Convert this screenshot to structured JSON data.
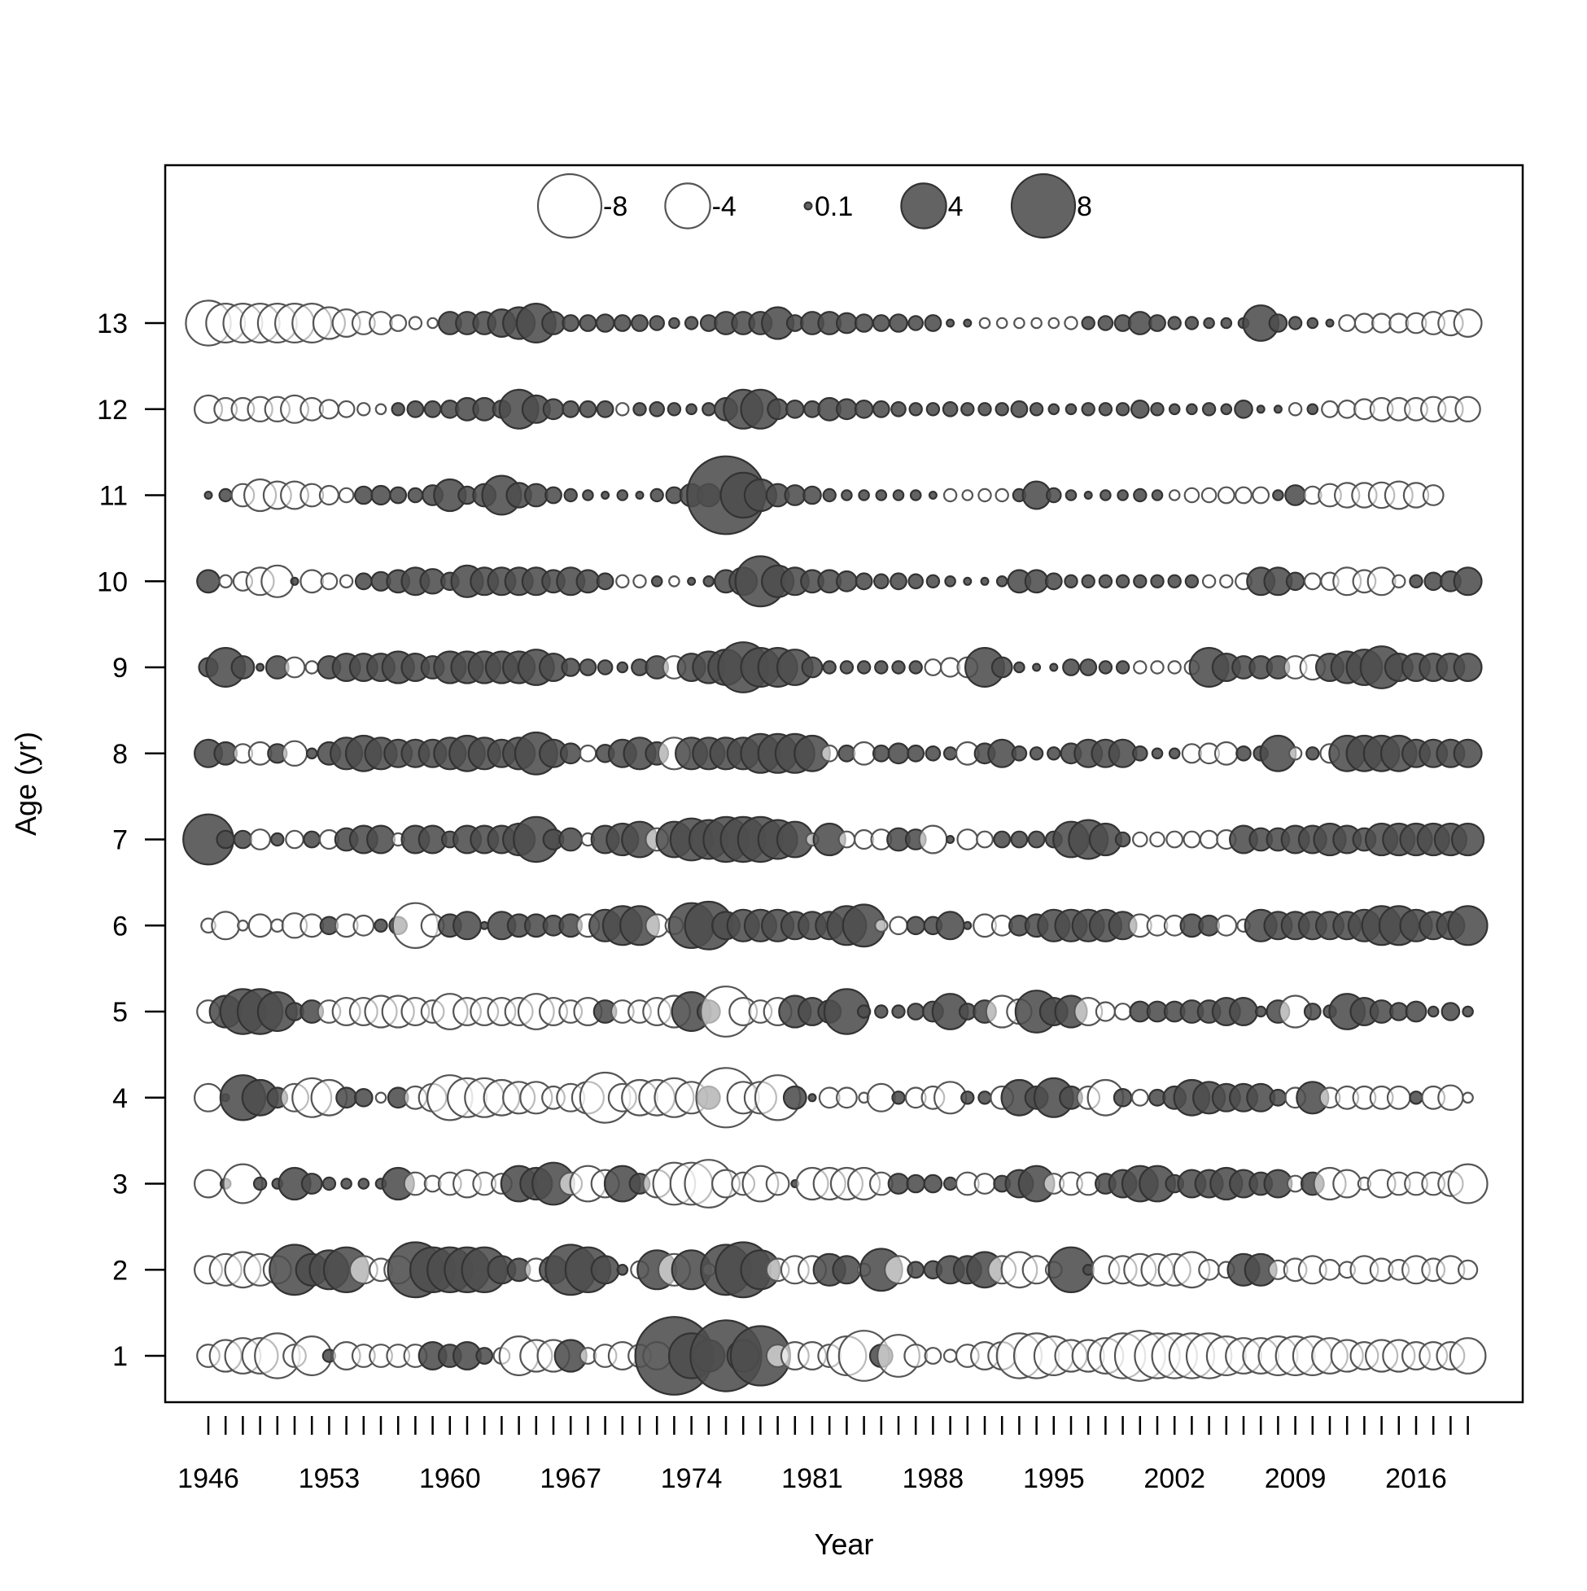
{
  "chart_data": {
    "type": "scatter",
    "subtype": "bubble",
    "xlabel": "Year",
    "ylabel": "Age (yr)",
    "x_ticks": [
      1946,
      1953,
      1960,
      1967,
      1974,
      1981,
      1988,
      1995,
      2002,
      2009,
      2016
    ],
    "x_minor_tick_step": 1,
    "x_range": [
      1946,
      2019
    ],
    "y_ticks": [
      1,
      2,
      3,
      4,
      5,
      6,
      7,
      8,
      9,
      10,
      11,
      12,
      13
    ],
    "legend": {
      "position": "top-center",
      "entries": [
        {
          "label": "-8",
          "value": -8
        },
        {
          "label": "-4",
          "value": -4
        },
        {
          "label": "0.1",
          "value": 0.1
        },
        {
          "label": "4",
          "value": 4
        },
        {
          "label": "8",
          "value": 8
        }
      ]
    },
    "colors": {
      "positive_fill": "#4d4d4d",
      "positive_stroke": "#333333",
      "negative_fill": "#ffffff",
      "negative_stroke": "#555555"
    },
    "years": [
      1946,
      1947,
      1948,
      1949,
      1950,
      1951,
      1952,
      1953,
      1954,
      1955,
      1956,
      1957,
      1958,
      1959,
      1960,
      1961,
      1962,
      1963,
      1964,
      1965,
      1966,
      1967,
      1968,
      1969,
      1970,
      1971,
      1972,
      1973,
      1974,
      1975,
      1976,
      1977,
      1978,
      1979,
      1980,
      1981,
      1982,
      1983,
      1984,
      1985,
      1986,
      1987,
      1988,
      1989,
      1990,
      1991,
      1992,
      1993,
      1994,
      1995,
      1996,
      1997,
      1998,
      1999,
      2000,
      2001,
      2002,
      2003,
      2004,
      2005,
      2006,
      2007,
      2008,
      2009,
      2010,
      2011,
      2012,
      2013,
      2014,
      2015,
      2016,
      2017,
      2018,
      2019
    ],
    "residuals": {
      "13": [
        -4,
        -3,
        -3,
        -3,
        -3,
        -3,
        -3,
        -2,
        -1.5,
        -1,
        -1,
        -0.5,
        -0.3,
        -0.2,
        1,
        1,
        1,
        1.5,
        2,
        3,
        1,
        0.5,
        0.5,
        0.6,
        0.5,
        0.5,
        0.4,
        0.2,
        0.3,
        0.5,
        1,
        1,
        1,
        2,
        0.5,
        1,
        1,
        0.8,
        0.6,
        0.5,
        0.6,
        0.4,
        0.5,
        0.1,
        0.1,
        -0.2,
        -0.2,
        -0.2,
        -0.2,
        -0.2,
        -0.3,
        0.3,
        0.4,
        0.5,
        1,
        0.5,
        0.3,
        0.3,
        0.2,
        0.2,
        0.2,
        2.5,
        0.6,
        0.3,
        0.2,
        0.1,
        -0.5,
        -0.7,
        -0.7,
        -0.7,
        -0.8,
        -1,
        -1.2,
        -1.5
      ],
      "12": [
        -1.5,
        -1,
        -1,
        -1.2,
        -1.2,
        -1.5,
        -1,
        -0.7,
        -0.5,
        -0.3,
        -0.2,
        0.3,
        0.5,
        0.5,
        0.6,
        1,
        1,
        0.6,
        3,
        1.5,
        0.8,
        0.5,
        0.5,
        0.5,
        -0.3,
        0.3,
        0.4,
        0.3,
        0.2,
        0.3,
        1,
        3,
        3,
        0.8,
        0.6,
        0.5,
        1,
        0.8,
        0.6,
        0.5,
        0.4,
        0.3,
        0.3,
        0.4,
        0.3,
        0.3,
        0.3,
        0.5,
        0.3,
        0.2,
        0.2,
        0.3,
        0.3,
        0.3,
        0.6,
        0.3,
        0.2,
        0.2,
        0.3,
        0.2,
        0.6,
        0.1,
        0.1,
        -0.3,
        0.2,
        -0.5,
        -0.6,
        -0.8,
        -1,
        -1,
        -1,
        -1.2,
        -1.2,
        -1.2
      ],
      "11": [
        0.1,
        0.3,
        -1,
        -2,
        -1.5,
        -1.5,
        -1,
        -0.7,
        -0.4,
        0.6,
        0.7,
        0.5,
        0.4,
        0.8,
        2,
        0.6,
        1,
        3,
        1.2,
        1,
        0.5,
        0.3,
        0.2,
        0.1,
        0.2,
        0.1,
        0.3,
        0.5,
        1,
        1,
        12,
        4,
        2,
        1,
        0.8,
        0.6,
        0.3,
        0.2,
        0.2,
        0.2,
        0.2,
        0.2,
        0.1,
        -0.3,
        -0.2,
        -0.3,
        -0.3,
        0.3,
        1.5,
        0.4,
        0.2,
        0.1,
        0.2,
        0.2,
        0.3,
        0.2,
        -0.2,
        -0.4,
        -0.4,
        -0.5,
        -0.5,
        -0.5,
        0.2,
        0.8,
        -0.6,
        -1,
        -1.2,
        -1.2,
        -1.3,
        -1.5,
        -1.2,
        -0.8,
        0,
        0
      ],
      "10": [
        1,
        -0.3,
        -0.7,
        -1.5,
        -2,
        0.1,
        -1,
        -0.5,
        -0.3,
        0.5,
        0.7,
        1,
        1.5,
        1.2,
        0.6,
        2,
        1.5,
        1.5,
        1.5,
        1.5,
        1,
        1.5,
        1,
        0.5,
        -0.3,
        -0.3,
        0.2,
        -0.2,
        0.1,
        0.2,
        1,
        1.5,
        5,
        2,
        1.5,
        1,
        1,
        0.8,
        0.5,
        0.4,
        0.5,
        0.4,
        0.3,
        0.2,
        0.1,
        0.1,
        0.2,
        1,
        1,
        0.5,
        0.3,
        0.3,
        0.3,
        0.3,
        0.3,
        0.3,
        0.3,
        0.3,
        -0.3,
        -0.3,
        -0.5,
        1.5,
        1.5,
        0.6,
        -0.5,
        -0.6,
        -1.5,
        -1,
        -1.5,
        -0.3,
        0.3,
        0.6,
        0.8,
        1.5
      ],
      "9": [
        0.7,
        3,
        1,
        0.1,
        1,
        -0.8,
        -0.3,
        1,
        1.5,
        1.5,
        1.5,
        2,
        1.5,
        1,
        2,
        2,
        2,
        2,
        2,
        2.5,
        1.5,
        0.6,
        0.5,
        0.4,
        0.2,
        0.5,
        1,
        -1,
        1.5,
        2,
        2.5,
        5,
        3,
        3,
        2.5,
        0.8,
        0.3,
        0.3,
        0.3,
        0.3,
        0.3,
        0.3,
        -0.5,
        -0.7,
        -0.8,
        3,
        0.8,
        0.2,
        0.1,
        0.1,
        0.5,
        0.5,
        0.3,
        0.3,
        -0.3,
        -0.3,
        -0.3,
        -0.4,
        3,
        1.5,
        1,
        1,
        1,
        -1,
        -1.2,
        1.5,
        2,
        2.5,
        3.5,
        1.5,
        1.5,
        1.5,
        1.5,
        1.5
      ],
      "8": [
        1.5,
        1,
        -0.7,
        -1,
        0.7,
        -1.2,
        0.2,
        1,
        2,
        2.5,
        2,
        1.5,
        1.5,
        1.5,
        2,
        2.5,
        2,
        1.5,
        2,
        3.5,
        1.5,
        0.8,
        -0.5,
        0.6,
        1.5,
        2,
        1,
        -2,
        2,
        2,
        2,
        2,
        3,
        3,
        3,
        2.5,
        -0.5,
        0.5,
        -1,
        0.5,
        0.8,
        0.5,
        0.4,
        0.3,
        -1,
        0.8,
        1.5,
        0.4,
        0.3,
        0.3,
        0.8,
        1.5,
        1.5,
        1.5,
        0.4,
        0.2,
        0.2,
        -0.7,
        -0.8,
        -1,
        0.4,
        0.4,
        2.5,
        -0.3,
        0.3,
        -0.7,
        2.5,
        2.5,
        2.5,
        2.5,
        1.5,
        1.5,
        1.5,
        1.5
      ],
      "7": [
        5,
        0.6,
        0.6,
        -0.8,
        0.3,
        -0.6,
        0.5,
        -0.7,
        1,
        1.5,
        1.5,
        -0.3,
        1.5,
        1.5,
        0.5,
        1.5,
        1.5,
        1.5,
        2,
        4,
        0.8,
        1,
        -0.3,
        1.5,
        2,
        2.5,
        -1,
        2.5,
        3.5,
        3,
        4,
        4,
        4,
        3,
        2.5,
        -0.3,
        2,
        -0.5,
        -0.7,
        -0.8,
        1,
        0.8,
        -1.5,
        0.1,
        -0.8,
        -0.5,
        0.5,
        0.5,
        0.5,
        0.5,
        2.5,
        3,
        2,
        0.4,
        -0.4,
        -0.4,
        -0.5,
        -0.5,
        -0.6,
        -0.7,
        1.5,
        1,
        1,
        1.5,
        1.5,
        2,
        1.5,
        1,
        2,
        2,
        2,
        2,
        2,
        2
      ],
      "6": [
        -0.4,
        -1.5,
        -0.2,
        -1,
        -0.3,
        -1.2,
        -1,
        0.6,
        -1,
        -0.8,
        0.3,
        0.6,
        -4,
        -1,
        1,
        1.5,
        0.1,
        1.5,
        1,
        1,
        0.8,
        1,
        -1,
        2,
        3,
        3,
        -1,
        -0.6,
        4,
        4.5,
        1.5,
        2,
        2,
        2,
        1.5,
        1.5,
        1.5,
        3,
        3.5,
        -0.3,
        -0.6,
        0.6,
        0.6,
        1.5,
        0.1,
        -1,
        -0.8,
        0.8,
        1,
        2,
        2,
        2,
        2,
        1.5,
        -1,
        -0.8,
        -0.8,
        1,
        0.8,
        -0.8,
        -0.3,
        2,
        1.5,
        1.5,
        1.5,
        1.5,
        1.5,
        2,
        3,
        3,
        2,
        1.5,
        1.5,
        3
      ],
      "5": [
        -1,
        2,
        4,
        4,
        3,
        0.6,
        1,
        -1,
        -1.5,
        -1.5,
        -2,
        -2,
        -1.5,
        -1,
        -2.5,
        -1.5,
        -1.5,
        -1.5,
        -1.5,
        -2.5,
        -1.5,
        -1,
        -1.5,
        1,
        -1,
        -1,
        -1.5,
        -2,
        3,
        1,
        -5,
        -1.5,
        -1,
        -1.5,
        2,
        1.5,
        1,
        4,
        0.3,
        0.3,
        0.3,
        0.5,
        0.8,
        2.5,
        0.5,
        1,
        -2,
        -1.2,
        3.5,
        1.5,
        2,
        -1.5,
        -0.7,
        -0.5,
        0.8,
        0.8,
        0.8,
        1,
        1,
        1.5,
        1.5,
        0.2,
        1,
        -2,
        0.5,
        0.3,
        2.5,
        1.5,
        1,
        0.6,
        0.8,
        0.2,
        0.6,
        0.2
      ],
      "4": [
        -1.5,
        0.1,
        4,
        2.5,
        0.8,
        -1.5,
        -3,
        -2.5,
        0.8,
        0.6,
        -0.2,
        0.8,
        -1,
        -1.5,
        -4,
        -3,
        -3,
        -2.5,
        -2,
        -2,
        -1,
        -1.5,
        -2,
        -5,
        -1.5,
        -2.5,
        -2.5,
        -3,
        -2,
        1,
        -7,
        -2,
        -2,
        -4,
        1,
        0.1,
        -0.8,
        -0.8,
        -0.2,
        -1.5,
        0.3,
        -0.8,
        -1,
        -2,
        0.3,
        0.3,
        -1,
        2.5,
        1,
        3,
        1,
        -1,
        -2.5,
        0.6,
        -0.5,
        0.5,
        1,
        2.5,
        2,
        1.5,
        1.5,
        1.5,
        0.5,
        -0.8,
        2,
        -0.8,
        -1,
        -1,
        -1,
        -1,
        0.3,
        -1,
        -1.2,
        -0.2
      ],
      "3": [
        -1.5,
        0.2,
        -3,
        0.3,
        0.2,
        2,
        0.8,
        0.3,
        0.2,
        0.2,
        0.2,
        2,
        -1,
        -0.5,
        -1,
        -1.5,
        -1,
        -0.8,
        2.5,
        2,
        3.5,
        -1,
        -2.5,
        -1.5,
        2.5,
        0.8,
        -1.5,
        -3.5,
        -3.5,
        -4.5,
        -1.5,
        -1,
        -2.5,
        -1,
        0.1,
        -2,
        -2,
        -2,
        -2,
        -1,
        0.8,
        0.6,
        0.6,
        0.3,
        -1,
        -0.8,
        0.5,
        1.5,
        2.5,
        -0.8,
        -1,
        -1,
        0.8,
        1.5,
        2.5,
        2.5,
        0.6,
        1.5,
        1.5,
        2,
        1.5,
        1,
        1.5,
        -0.5,
        1,
        -2,
        -1.5,
        -0.3,
        -1.5,
        -1,
        -1,
        -1,
        -1.2,
        -3
      ],
      "2": [
        -1.5,
        -2,
        -2.5,
        -2,
        -1.5,
        5,
        2,
        3,
        4,
        -1.5,
        -1,
        -1.5,
        6,
        4,
        4,
        4,
        4,
        1.5,
        1,
        -1,
        1.5,
        5,
        4,
        1.5,
        0.2,
        -0.6,
        3,
        -2,
        3,
        -0.3,
        5,
        6,
        3,
        -1,
        -1.5,
        -1.5,
        2,
        1.5,
        -0.3,
        3.5,
        -1.5,
        0.5,
        0.6,
        1.5,
        1.5,
        2.5,
        -1.5,
        -2.5,
        -1.5,
        -0.5,
        4,
        0.2,
        -1.5,
        -1.5,
        -2,
        -2,
        -2,
        -2.5,
        -0.8,
        -0.5,
        2,
        2,
        -0.7,
        -1,
        -1.5,
        -0.8,
        -0.5,
        -1.5,
        -1,
        -0.8,
        -1.5,
        -1,
        -1.5,
        -0.7
      ],
      "1": [
        -1,
        -2,
        -2.5,
        -2.5,
        -4,
        -1,
        -3,
        0.3,
        -1.5,
        -1,
        -1,
        -1,
        -1,
        1.5,
        1,
        1.5,
        0.5,
        -0.5,
        -3,
        -2,
        -2,
        2,
        -0.5,
        -1,
        -1.5,
        -1,
        -1.5,
        12,
        4,
        2,
        10,
        2,
        7,
        -1,
        -1.5,
        -1.5,
        -1,
        -3,
        -5,
        1,
        -3.5,
        -1,
        -0.5,
        -0.3,
        -1,
        -1.5,
        -1.5,
        -4,
        -4,
        -3,
        -2,
        -2,
        -2.5,
        -4,
        -5,
        -4,
        -4,
        -4,
        -4,
        -3,
        -2.5,
        -2.5,
        -3,
        -3,
        -3,
        -2.5,
        -2,
        -1.5,
        -2,
        -2,
        -1.5,
        -1.5,
        -1.5,
        -2.5
      ]
    }
  }
}
